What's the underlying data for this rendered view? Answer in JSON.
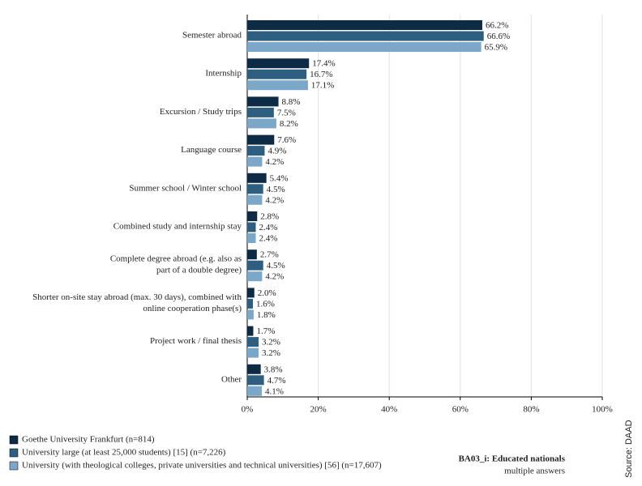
{
  "chart_data": {
    "type": "hbar",
    "categories": [
      "Semester abroad",
      "Internship",
      "Excursion / Study trips",
      "Language course",
      "Summer school / Winter school",
      "Combined study and internship stay",
      [
        "Complete degree abroad (e.g. also as",
        "part of a double degree)"
      ],
      [
        "Shorter on-site stay abroad (max. 30 days), combined with",
        "online cooperation phase(s)"
      ],
      "Project work / final thesis",
      "Other"
    ],
    "series": [
      {
        "name": "Goethe University Frankfurt (n=814)",
        "color": "#0d2b45",
        "values": [
          66.2,
          17.4,
          8.8,
          7.6,
          5.4,
          2.8,
          2.7,
          2.0,
          1.7,
          3.8
        ],
        "value_labels": [
          "66.2%",
          "17.4%",
          "8.8%",
          "7.6%",
          "5.4%",
          "2.8%",
          "2.7%",
          "2.0%",
          "1.7%",
          "3.8%"
        ]
      },
      {
        "name": "University large (at least 25,000 students) [15] (n=7,226)",
        "color": "#2e5f80",
        "values": [
          66.6,
          16.7,
          7.5,
          4.9,
          4.5,
          2.4,
          4.5,
          1.6,
          3.2,
          4.7
        ],
        "value_labels": [
          "66.6%",
          "16.7%",
          "7.5%",
          "4.9%",
          "4.5%",
          "2.4%",
          "4.5%",
          "1.6%",
          "3.2%",
          "4.7%"
        ]
      },
      {
        "name": "University (with theological colleges, private universities and technical universities) [56] (n=17,607)",
        "color": "#7ba8c9",
        "values": [
          65.9,
          17.1,
          8.2,
          4.2,
          4.2,
          2.4,
          4.2,
          1.8,
          3.2,
          4.1
        ],
        "value_labels": [
          "65.9%",
          "17.1%",
          "8.2%",
          "4.2%",
          "4.2%",
          "2.4%",
          "4.2%",
          "1.8%",
          "3.2%",
          "4.1%"
        ]
      }
    ],
    "xlim": [
      0,
      100
    ],
    "xticks": [
      {
        "value": 0,
        "label": "0%"
      },
      {
        "value": 20,
        "label": "20%"
      },
      {
        "value": 40,
        "label": "40%"
      },
      {
        "value": 60,
        "label": "60%"
      },
      {
        "value": 80,
        "label": "80%"
      },
      {
        "value": 100,
        "label": "100%"
      }
    ],
    "grid": true,
    "note_title": "BA03_i: Educated nationals",
    "note": "multiple answers",
    "source": "Source: DAAD"
  }
}
